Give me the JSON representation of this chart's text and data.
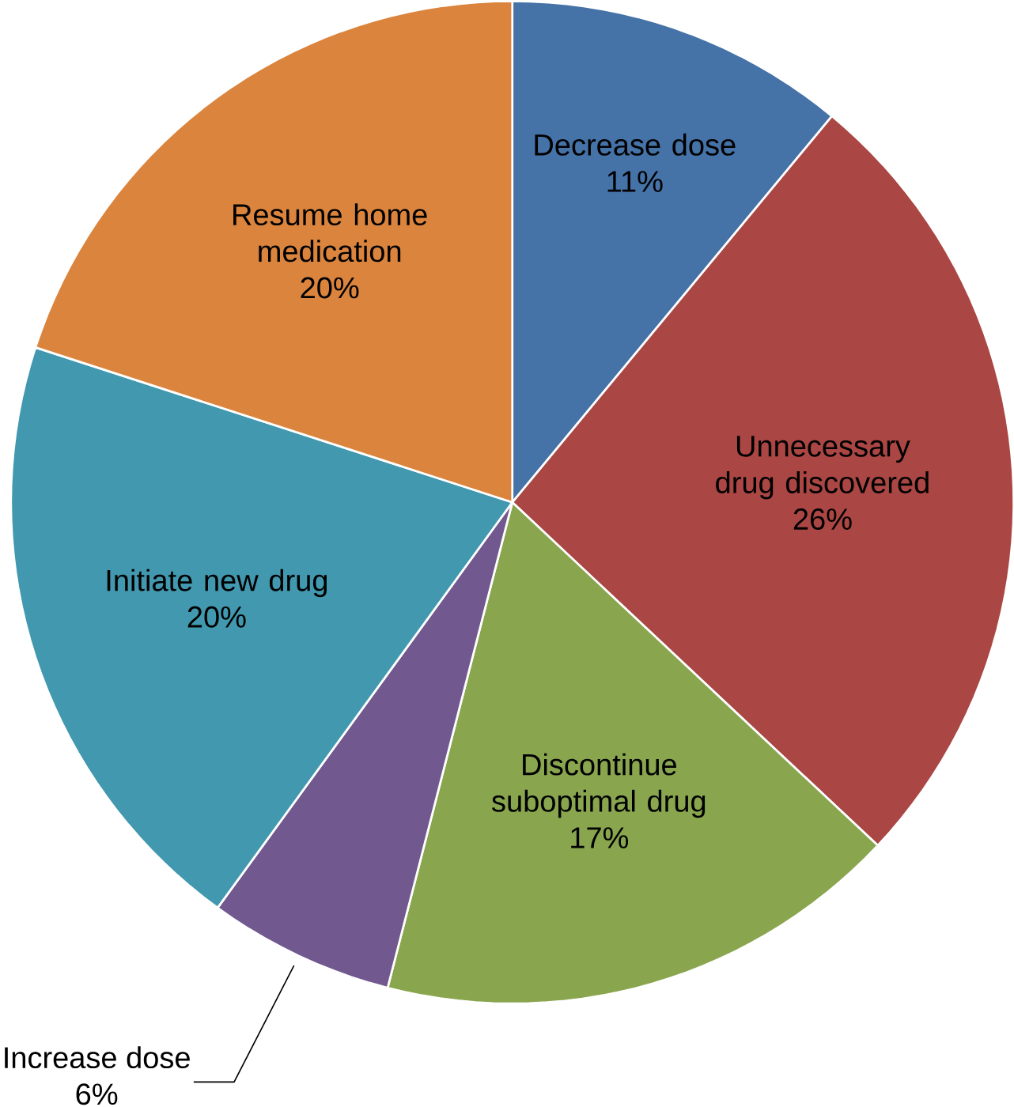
{
  "chart_data": {
    "type": "pie",
    "categories": [
      "Decrease dose",
      "Unnecessary drug discovered",
      "Discontinue suboptimal drug",
      "Increase dose",
      "Initiate new drug",
      "Resume home medication"
    ],
    "values": [
      11,
      26,
      17,
      6,
      20,
      20
    ],
    "value_labels": [
      "11%",
      "26%",
      "17%",
      "6%",
      "20%",
      "20%"
    ],
    "colors": [
      "#4572a7",
      "#aa4643",
      "#89a54e",
      "#71588f",
      "#4198af",
      "#db843d"
    ]
  }
}
